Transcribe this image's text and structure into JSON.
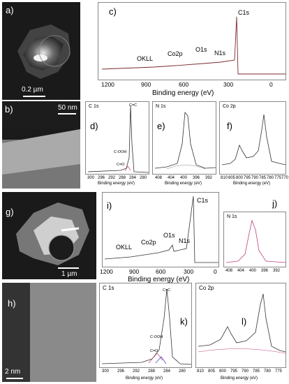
{
  "panels": {
    "a": {
      "label": "a)",
      "scale": "0.2 µm"
    },
    "b": {
      "label": "b)",
      "scale": "50 nm"
    },
    "g": {
      "label": "g)",
      "scale": "1 µm"
    },
    "h": {
      "label": "h)",
      "scale": "2 nm"
    }
  },
  "chart_data": [
    {
      "id": "c",
      "label": "c)",
      "type": "line",
      "xlabel": "Binding energy (eV)",
      "xlim": [
        1200,
        0
      ],
      "ticks": [
        "1200",
        "900",
        "600",
        "300",
        "0"
      ],
      "annotations": [
        "OKLL",
        "Co2p",
        "O1s",
        "N1s",
        "C1s"
      ]
    },
    {
      "id": "d",
      "label": "d)",
      "title": "C 1s",
      "type": "line",
      "xlabel": "Binding energy (eV)",
      "xlim": [
        301,
        281
      ],
      "ticks": [
        "300",
        "296",
        "292",
        "288",
        "284",
        "280"
      ],
      "annotations": [
        "C=C",
        "C-OOH",
        "C=O"
      ]
    },
    {
      "id": "e",
      "label": "e)",
      "title": "N 1s",
      "type": "line",
      "xlabel": "Binding energy (eV)",
      "xlim": [
        410,
        391
      ],
      "ticks": [
        "408",
        "404",
        "400",
        "396",
        "392"
      ]
    },
    {
      "id": "f",
      "label": "f)",
      "title": "Co 2p",
      "type": "line",
      "xlabel": "Binding energy (eV)",
      "xlim": [
        811,
        769
      ],
      "ticks": [
        "810",
        "805",
        "800",
        "795",
        "790",
        "785",
        "780",
        "775",
        "770"
      ]
    },
    {
      "id": "i",
      "label": "i)",
      "type": "line",
      "xlabel": "Binding energy (eV)",
      "xlim": [
        1200,
        0
      ],
      "ticks": [
        "1200",
        "900",
        "600",
        "300",
        "0"
      ],
      "annotations": [
        "OKLL",
        "Co2p",
        "O1s",
        "N1s",
        "C1s"
      ]
    },
    {
      "id": "j",
      "label": "j)",
      "title": "N 1s",
      "type": "line",
      "xlabel": "Binding energy (eV)",
      "xlim": [
        410,
        391
      ],
      "ticks": [
        "408",
        "404",
        "400",
        "396",
        "392"
      ]
    },
    {
      "id": "k",
      "label": "k)",
      "title": "C 1s",
      "type": "line",
      "xlabel": "Binding energy (eV)",
      "xlim": [
        301,
        281
      ],
      "ticks": [
        "300",
        "296",
        "292",
        "288",
        "284",
        "280"
      ],
      "annotations": [
        "C=C",
        "C-OOH",
        "C=O"
      ]
    },
    {
      "id": "l",
      "label": "l)",
      "title": "Co 2p",
      "type": "line",
      "xlabel": "Binding energy (eV)",
      "xlim": [
        811,
        773
      ],
      "ticks": [
        "810",
        "805",
        "800",
        "795",
        "790",
        "785",
        "780",
        "775"
      ]
    }
  ]
}
